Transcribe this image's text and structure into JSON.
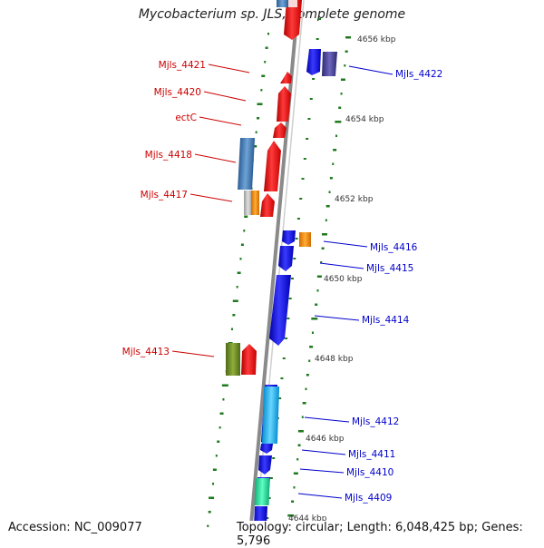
{
  "title": "Mycobacterium sp. JLS, complete genome",
  "footer": {
    "accession": "Accession: NC_009077",
    "topology": "Topology: circular; Length: 6,048,425 bp; Genes: 5,796"
  },
  "ticks": [
    "4656 kbp",
    "4654 kbp",
    "4652 kbp",
    "4650 kbp",
    "4648 kbp",
    "4646 kbp",
    "4644 kbp"
  ],
  "genes_left": [
    "Mjls_4421",
    "Mjls_4420",
    "ectC",
    "Mjls_4418",
    "Mjls_4417",
    "Mjls_4413"
  ],
  "genes_right": [
    "Mjls_4422",
    "Mjls_4416",
    "Mjls_4415",
    "Mjls_4414",
    "Mjls_4412",
    "Mjls_4411",
    "Mjls_4410",
    "Mjls_4409"
  ],
  "colors": {
    "forward_strand": "#ee1111",
    "reverse_strand": "#1a1aee",
    "left_label": "#cc0000",
    "right_label": "#0000cc",
    "backbone": "#888888",
    "gc_dash": "#1f7a1f"
  }
}
